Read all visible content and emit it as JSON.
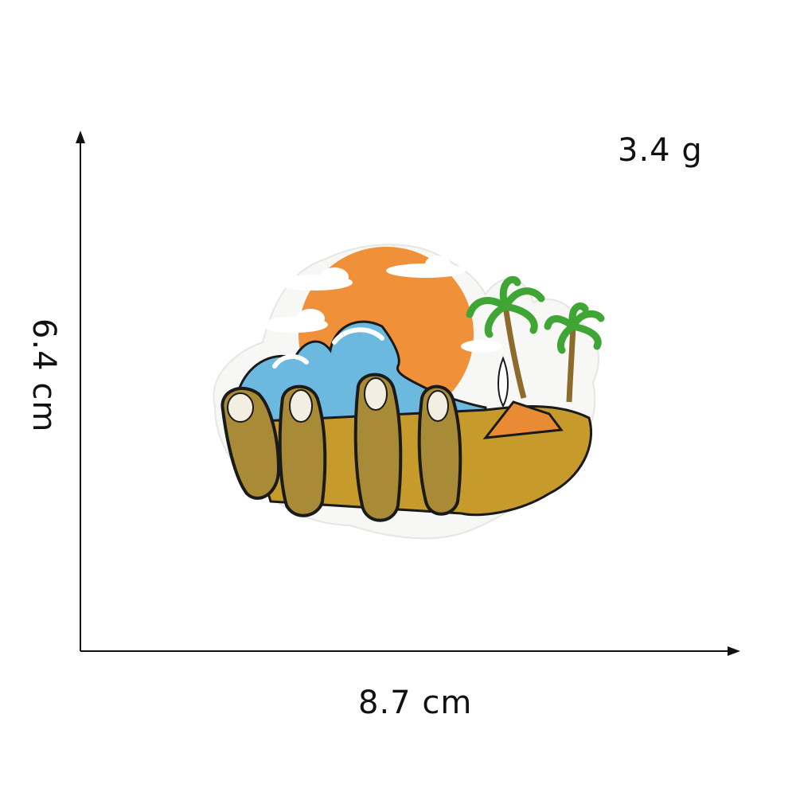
{
  "measurements": {
    "weight": "3.4 g",
    "width": "8.7 cm",
    "height": "6.4  cm"
  },
  "colors": {
    "axis": "#111111",
    "sun": "#f0913a",
    "wave": "#6cb9e0",
    "sand": "#c79a2c",
    "hand": "#a98a36",
    "palm": "#3fa535",
    "trunk": "#8c6b2c",
    "tent": "#e98a34",
    "outline": "#1a1a1a"
  },
  "patch": {
    "subject": "embroidered-hand-beach-patch"
  }
}
